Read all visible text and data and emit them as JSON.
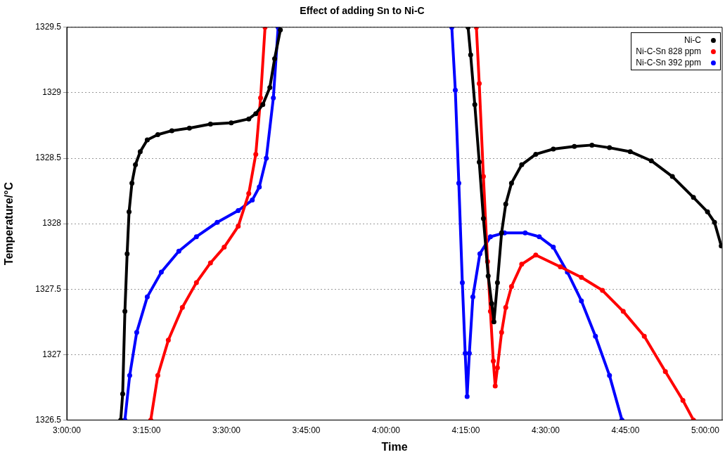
{
  "chart_data": {
    "type": "line",
    "title": "Effect of adding Sn to Ni-C",
    "xlabel": "Time",
    "ylabel": "Temperature/°C",
    "xlim": [
      3,
      5.053
    ],
    "ylim": [
      1326.5,
      1329.5
    ],
    "xticks": [
      {
        "value": 3,
        "label": "3:00:00"
      },
      {
        "value": 3.25,
        "label": "3:15:00"
      },
      {
        "value": 3.5,
        "label": "3:30:00"
      },
      {
        "value": 3.75,
        "label": "3:45:00"
      },
      {
        "value": 4,
        "label": "4:00:00"
      },
      {
        "value": 4.25,
        "label": "4:15:00"
      },
      {
        "value": 4.5,
        "label": "4:30:00"
      },
      {
        "value": 4.75,
        "label": "4:45:00"
      },
      {
        "value": 5,
        "label": "5:00:00"
      }
    ],
    "yticks": [
      1326.5,
      1327,
      1327.5,
      1328,
      1328.5,
      1329,
      1329.5
    ],
    "grid": "y",
    "legend": "top right",
    "marker": "circle",
    "series": [
      {
        "name": "Ni-C",
        "color": "#000000",
        "x": [
          3.169,
          3.175,
          3.182,
          3.189,
          3.195,
          3.204,
          3.215,
          3.23,
          3.252,
          3.285,
          3.329,
          3.384,
          3.45,
          3.515,
          3.57,
          3.592,
          3.614,
          3.636,
          3.651,
          3.669,
          3.9,
          4.257,
          4.265,
          4.278,
          4.292,
          4.305,
          4.32,
          4.331,
          4.338,
          4.349,
          4.362,
          4.375,
          4.393,
          4.425,
          4.469,
          4.524,
          4.59,
          4.645,
          4.7,
          4.765,
          4.831,
          4.897,
          4.963,
          5.007,
          5.029,
          5.05
        ],
        "values": [
          1326.5,
          1326.7,
          1327.33,
          1327.77,
          1328.09,
          1328.31,
          1328.45,
          1328.55,
          1328.64,
          1328.68,
          1328.71,
          1328.73,
          1328.76,
          1328.77,
          1328.8,
          1328.84,
          1328.91,
          1329.04,
          1329.26,
          1329.48,
          null,
          1329.5,
          1329.29,
          1328.91,
          1328.47,
          1328.04,
          1327.6,
          1327.39,
          1327.25,
          1327.55,
          1327.93,
          1328.15,
          1328.31,
          1328.45,
          1328.53,
          1328.57,
          1328.59,
          1328.6,
          1328.58,
          1328.55,
          1328.48,
          1328.36,
          1328.2,
          1328.09,
          1328.01,
          1327.83
        ]
      },
      {
        "name": "Ni-C-Sn 828 ppm",
        "color": "#ff0000",
        "x": [
          3.263,
          3.285,
          3.318,
          3.362,
          3.406,
          3.45,
          3.493,
          3.537,
          3.57,
          3.592,
          3.607,
          3.621,
          3.9,
          4.283,
          4.292,
          4.305,
          4.318,
          4.327,
          4.336,
          4.342,
          4.349,
          4.362,
          4.375,
          4.393,
          4.425,
          4.469,
          4.546,
          4.612,
          4.678,
          4.743,
          4.809,
          4.875,
          4.93,
          4.963
        ],
        "values": [
          1326.5,
          1326.84,
          1327.11,
          1327.36,
          1327.55,
          1327.7,
          1327.82,
          1327.98,
          1328.23,
          1328.53,
          1328.96,
          1329.5,
          null,
          1329.5,
          1329.07,
          1328.36,
          1327.71,
          1327.33,
          1326.95,
          1326.76,
          1326.9,
          1327.17,
          1327.36,
          1327.52,
          1327.69,
          1327.76,
          1327.67,
          1327.59,
          1327.49,
          1327.33,
          1327.14,
          1326.87,
          1326.65,
          1326.5
        ]
      },
      {
        "name": "Ni-C-Sn 392 ppm",
        "color": "#0000ff",
        "x": [
          3.182,
          3.197,
          3.219,
          3.252,
          3.296,
          3.351,
          3.406,
          3.471,
          3.537,
          3.581,
          3.603,
          3.625,
          3.647,
          3.662,
          3.9,
          4.206,
          4.217,
          4.228,
          4.239,
          4.248,
          4.254,
          4.261,
          4.272,
          4.294,
          4.327,
          4.371,
          4.436,
          4.48,
          4.524,
          4.568,
          4.612,
          4.656,
          4.7,
          4.739
        ],
        "values": [
          1326.5,
          1326.84,
          1327.17,
          1327.44,
          1327.63,
          1327.79,
          1327.9,
          1328.01,
          1328.1,
          1328.18,
          1328.28,
          1328.5,
          1328.96,
          1329.5,
          null,
          1329.5,
          1329.02,
          1328.31,
          1327.55,
          1327.01,
          1326.68,
          1327.01,
          1327.44,
          1327.77,
          1327.9,
          1327.93,
          1327.93,
          1327.9,
          1327.82,
          1327.63,
          1327.41,
          1327.14,
          1326.84,
          1326.5
        ]
      }
    ]
  }
}
